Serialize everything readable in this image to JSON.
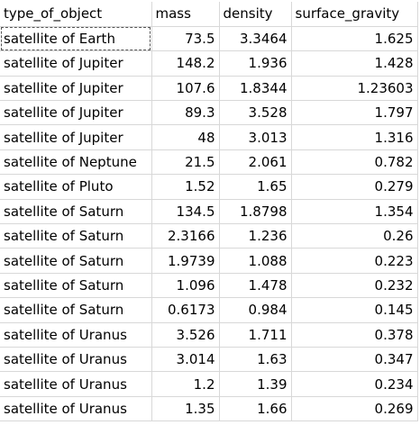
{
  "table": {
    "columns": [
      "type_of_object",
      "mass",
      "density",
      "surface_gravity"
    ],
    "rows": [
      [
        "satellite of Earth",
        "73.5",
        "3.3464",
        "1.625"
      ],
      [
        "satellite of Jupiter",
        "148.2",
        "1.936",
        "1.428"
      ],
      [
        "satellite of Jupiter",
        "107.6",
        "1.8344",
        "1.23603"
      ],
      [
        "satellite of Jupiter",
        "89.3",
        "3.528",
        "1.797"
      ],
      [
        "satellite of Jupiter",
        "48",
        "3.013",
        "1.316"
      ],
      [
        "satellite of Neptune",
        "21.5",
        "2.061",
        "0.782"
      ],
      [
        "satellite of Pluto",
        "1.52",
        "1.65",
        "0.279"
      ],
      [
        "satellite of Saturn",
        "134.5",
        "1.8798",
        "1.354"
      ],
      [
        "satellite of Saturn",
        "2.3166",
        "1.236",
        "0.26"
      ],
      [
        "satellite of Saturn",
        "1.9739",
        "1.088",
        "0.223"
      ],
      [
        "satellite of Saturn",
        "1.096",
        "1.478",
        "0.232"
      ],
      [
        "satellite of Saturn",
        "0.6173",
        "0.984",
        "0.145"
      ],
      [
        "satellite of Uranus",
        "3.526",
        "1.711",
        "0.378"
      ],
      [
        "satellite of Uranus",
        "3.014",
        "1.63",
        "0.347"
      ],
      [
        "satellite of Uranus",
        "1.2",
        "1.39",
        "0.234"
      ],
      [
        "satellite of Uranus",
        "1.35",
        "1.66",
        "0.269"
      ]
    ]
  }
}
